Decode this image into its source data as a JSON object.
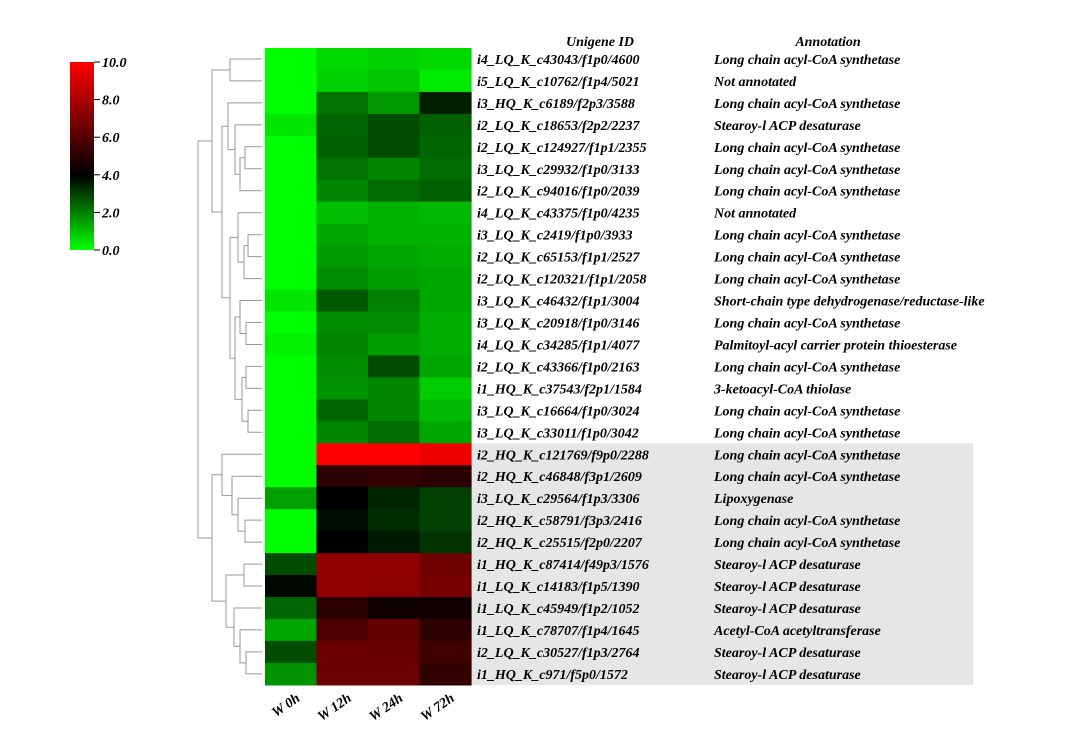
{
  "chart_data": {
    "type": "heatmap",
    "columns": [
      "W 0h",
      "W 12h",
      "W 24h",
      "W 72h"
    ],
    "row_header_id": "Unigene ID",
    "row_header_annotation": "Annotation",
    "colorbar": {
      "min": 0.0,
      "max": 10.0,
      "ticks": [
        "10.0",
        "8.0",
        "6.0",
        "4.0",
        "2.0",
        "0.0"
      ],
      "colors": [
        {
          "value": 0,
          "color": "#00ff00"
        },
        {
          "value": 4,
          "color": "#000000"
        },
        {
          "value": 10,
          "color": "#ff0000"
        }
      ]
    },
    "rows": [
      {
        "id": "i4_LQ_K_c43043/f1p0/4600",
        "annotation": "Long chain acyl-CoA synthetase",
        "values": [
          0.0,
          0.6,
          0.7,
          0.6
        ]
      },
      {
        "id": "i5_LQ_K_c10762/f1p4/5021",
        "annotation": "Not annotated",
        "values": [
          0.0,
          0.7,
          0.9,
          0.3
        ]
      },
      {
        "id": "i3_HQ_K_c6189/f2p3/3588",
        "annotation": "Long chain acyl-CoA synthetase",
        "values": [
          0.0,
          2.2,
          1.6,
          3.5
        ]
      },
      {
        "id": "i2_LQ_K_c18653/f2p2/2237",
        "annotation": "Stearoy-l ACP desaturase",
        "values": [
          0.4,
          2.4,
          2.8,
          2.5
        ]
      },
      {
        "id": "i2_LQ_K_c124927/f1p1/2355",
        "annotation": "Long chain acyl-CoA synthetase",
        "values": [
          0.0,
          2.5,
          2.8,
          2.4
        ]
      },
      {
        "id": "i3_LQ_K_c29932/f1p0/3133",
        "annotation": "Long chain acyl-CoA synthetase",
        "values": [
          0.0,
          2.2,
          1.9,
          2.3
        ]
      },
      {
        "id": "i2_LQ_K_c94016/f1p0/2039",
        "annotation": "Long chain acyl-CoA synthetase",
        "values": [
          0.0,
          1.9,
          2.3,
          2.5
        ]
      },
      {
        "id": "i4_LQ_K_c43375/f1p0/4235",
        "annotation": "Not annotated",
        "values": [
          0.0,
          1.0,
          1.2,
          1.1
        ]
      },
      {
        "id": "i3_LQ_K_c2419/f1p0/3933",
        "annotation": "Long chain acyl-CoA synthetase",
        "values": [
          0.0,
          1.4,
          1.2,
          1.2
        ]
      },
      {
        "id": "i2_LQ_K_c65153/f1p1/2527",
        "annotation": "Long chain acyl-CoA synthetase",
        "values": [
          0.0,
          1.6,
          1.4,
          1.3
        ]
      },
      {
        "id": "i2_LQ_K_c120321/f1p1/2058",
        "annotation": "Long chain acyl-CoA synthetase",
        "values": [
          0.0,
          1.8,
          1.5,
          1.4
        ]
      },
      {
        "id": "i3_LQ_K_c46432/f1p1/3004",
        "annotation": "Short-chain type dehydrogenase/reductase-like",
        "values": [
          0.4,
          2.6,
          2.0,
          1.4
        ]
      },
      {
        "id": "i3_LQ_K_c20918/f1p0/3146",
        "annotation": "Long chain acyl-CoA synthetase",
        "values": [
          0.0,
          1.8,
          1.8,
          1.3
        ]
      },
      {
        "id": "i4_LQ_K_c34285/f1p1/4077",
        "annotation": "Palmitoyl-acyl carrier protein thioesterase",
        "values": [
          0.2,
          1.9,
          1.5,
          1.3
        ]
      },
      {
        "id": "i2_LQ_K_c43366/f1p0/2163",
        "annotation": "Long chain acyl-CoA synthetase",
        "values": [
          0.0,
          1.8,
          2.8,
          1.4
        ]
      },
      {
        "id": "i1_HQ_K_c37543/f2p1/1584",
        "annotation": "3-ketoacyl-CoA thiolase",
        "values": [
          0.0,
          1.7,
          1.9,
          0.8
        ]
      },
      {
        "id": "i3_LQ_K_c16664/f1p0/3024",
        "annotation": "Long chain acyl-CoA synthetase",
        "values": [
          0.0,
          2.4,
          1.9,
          1.1
        ]
      },
      {
        "id": "i3_LQ_K_c33011/f1p0/3042",
        "annotation": "Long chain acyl-CoA synthetase",
        "values": [
          0.0,
          1.9,
          2.3,
          1.4
        ]
      },
      {
        "id": "i2_HQ_K_c121769/f9p0/2288",
        "annotation": "Long chain acyl-CoA synthetase",
        "values": [
          0.0,
          10.0,
          10.0,
          9.6
        ]
      },
      {
        "id": "i2_HQ_K_c46848/f3p1/2609",
        "annotation": "Long chain acyl-CoA synthetase",
        "values": [
          0.0,
          5.0,
          5.2,
          5.0
        ]
      },
      {
        "id": "i3_LQ_K_c29564/f1p3/3306",
        "annotation": "Lipoxygenase",
        "values": [
          1.5,
          4.0,
          3.4,
          3.0
        ]
      },
      {
        "id": "i2_HQ_K_c58791/f3p3/2416",
        "annotation": "Long chain acyl-CoA synthetase",
        "values": [
          0.0,
          3.8,
          3.3,
          3.0
        ]
      },
      {
        "id": "i2_HQ_K_c25515/f2p0/2207",
        "annotation": "Long chain acyl-CoA synthetase",
        "values": [
          0.0,
          4.0,
          3.6,
          3.2
        ]
      },
      {
        "id": "i1_HQ_K_c87414/f49p3/1576",
        "annotation": "Stearoy-l ACP desaturase",
        "values": [
          2.8,
          7.4,
          7.4,
          6.6
        ]
      },
      {
        "id": "i1_LQ_K_c14183/f1p5/1390",
        "annotation": "Stearoy-l ACP desaturase",
        "values": [
          3.9,
          7.4,
          7.3,
          6.8
        ]
      },
      {
        "id": "i1_LQ_K_c45949/f1p2/1052",
        "annotation": "Stearoy-l ACP desaturase",
        "values": [
          2.4,
          5.0,
          4.3,
          4.4
        ]
      },
      {
        "id": "i1_LQ_K_c78707/f1p4/1645",
        "annotation": "Acetyl-CoA acetyltransferase",
        "values": [
          1.4,
          5.8,
          6.3,
          5.1
        ]
      },
      {
        "id": "i2_LQ_K_c30527/f1p3/2764",
        "annotation": "Stearoy-l ACP desaturase",
        "values": [
          2.8,
          6.5,
          6.4,
          5.5
        ]
      },
      {
        "id": "i1_HQ_K_c971/f5p0/1572",
        "annotation": "Stearoy-l ACP desaturase",
        "values": [
          1.7,
          6.5,
          6.5,
          5.2
        ]
      }
    ],
    "highlighted_rows_from_index": 18,
    "highlight_color": "#e6e6e6"
  }
}
